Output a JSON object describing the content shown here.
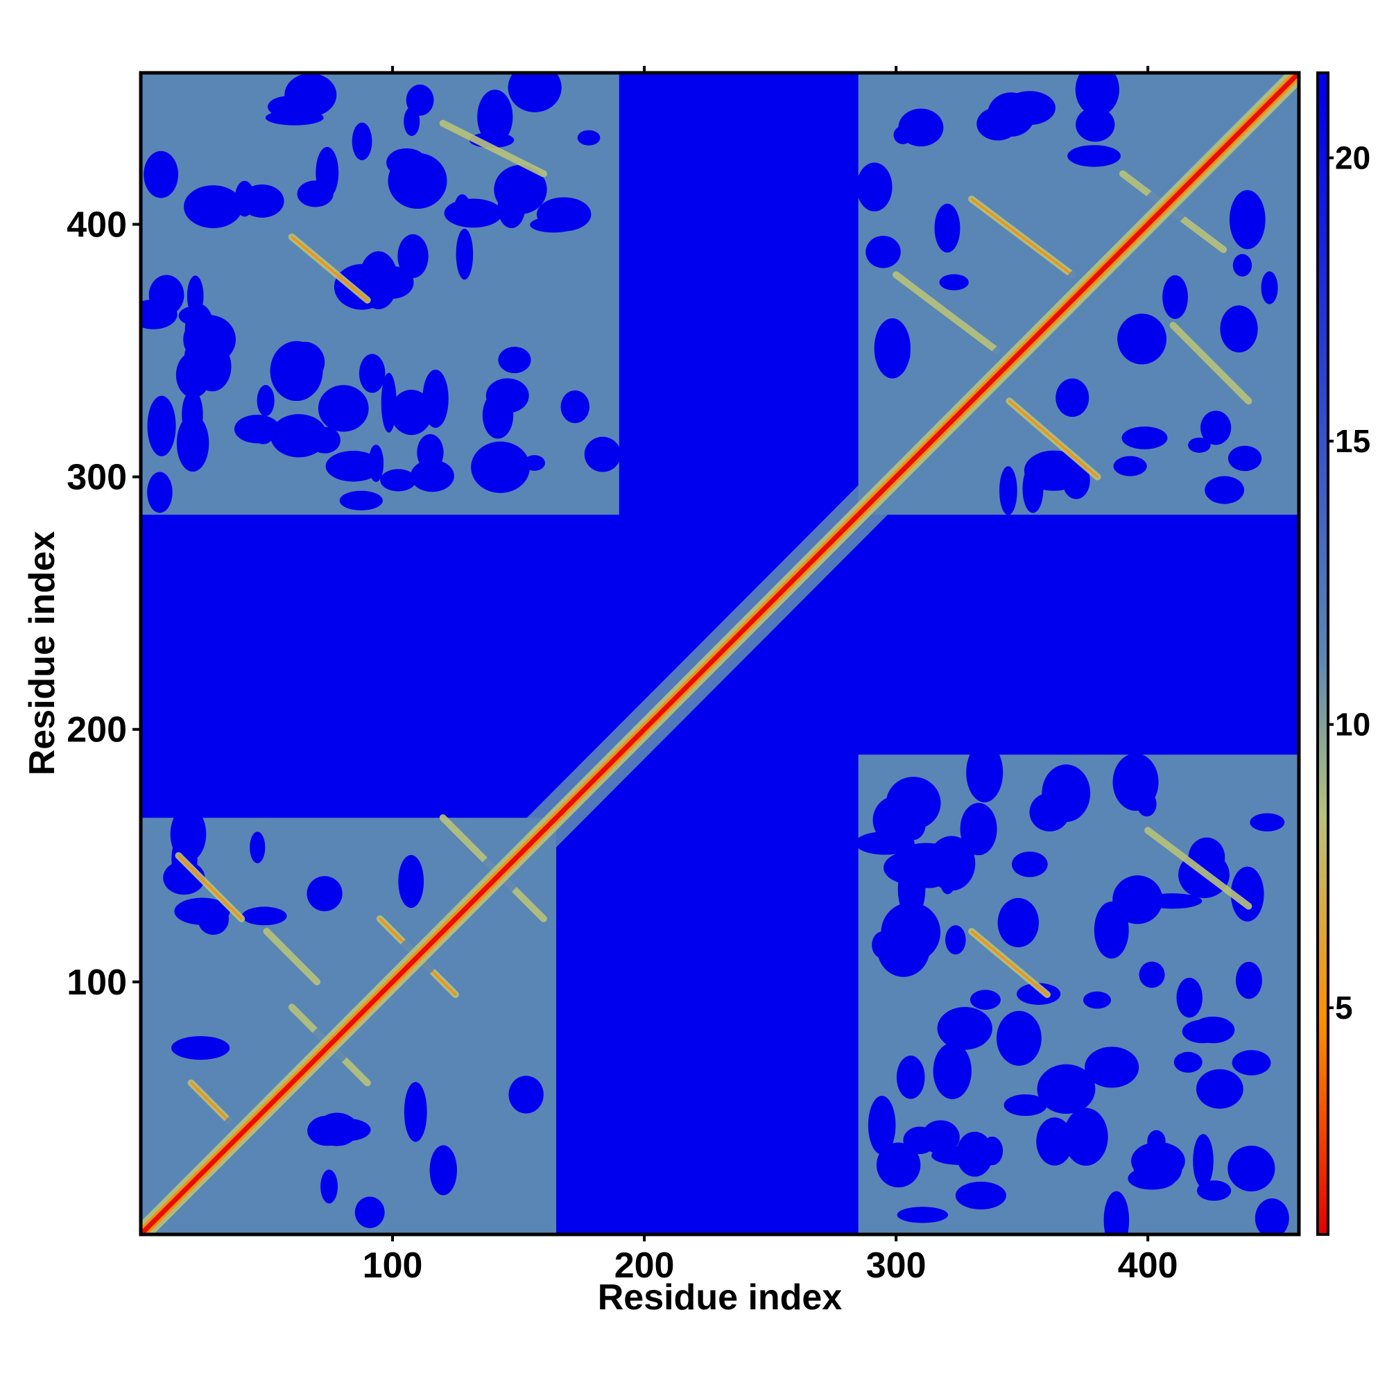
{
  "chart_data": {
    "type": "heatmap",
    "title": "",
    "xlabel": "Residue index",
    "ylabel": "Residue index",
    "xlim": [
      0,
      460
    ],
    "ylim": [
      0,
      460
    ],
    "x_ticks": [
      100,
      200,
      300,
      400
    ],
    "y_ticks": [
      100,
      200,
      300,
      400
    ],
    "colorbar": {
      "ticks": [
        5,
        10,
        15,
        20
      ],
      "range": [
        1,
        21.5
      ],
      "colors": [
        "#e60000",
        "#ff8c00",
        "#b8c27a",
        "#5a86b5",
        "#0000ee"
      ]
    },
    "colors": {
      "far": "#0000ee",
      "mid": "#5a86b5",
      "near": "#b8c27a",
      "close": "#ff8c00",
      "contact": "#e60000"
    },
    "domains": [
      {
        "start": 0,
        "end": 165
      },
      {
        "start": 285,
        "end": 460
      }
    ],
    "interdomain_block": {
      "x": [
        0,
        190
      ],
      "y": [
        285,
        460
      ]
    }
  }
}
